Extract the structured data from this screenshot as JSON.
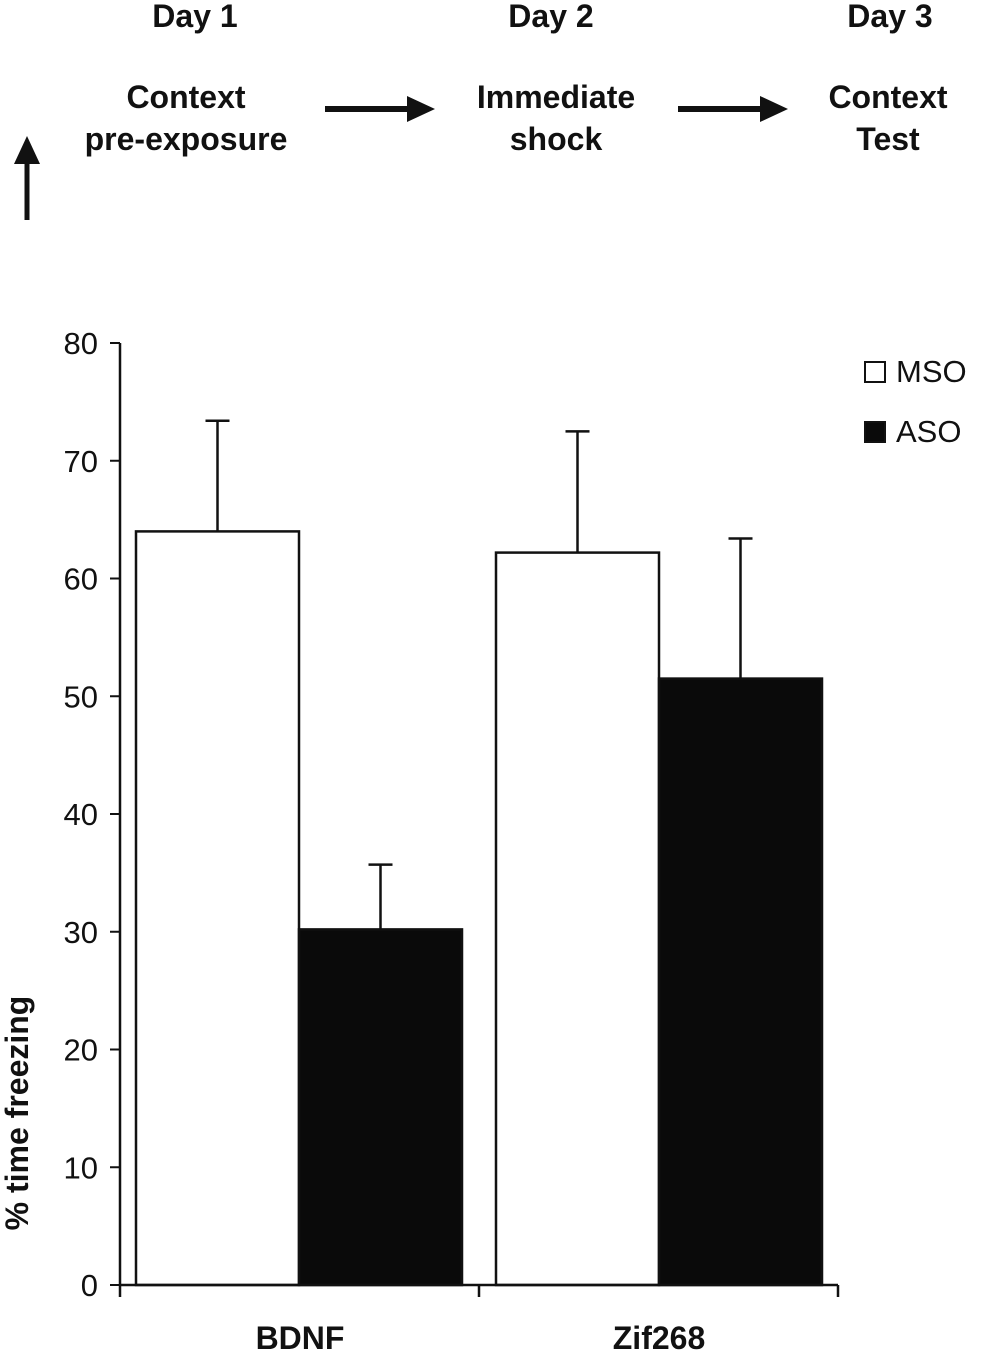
{
  "timeline": {
    "days": [
      "Day 1",
      "Day 2",
      "Day 3"
    ],
    "steps": [
      "Context\npre-exposure",
      "Immediate\nshock",
      "Context\nTest"
    ]
  },
  "legend": [
    {
      "label": "MSO",
      "color": "#ffffff"
    },
    {
      "label": "ASO",
      "color": "#0a0a0a"
    }
  ],
  "chart_data": {
    "type": "bar",
    "categories": [
      "BDNF",
      "Zif268"
    ],
    "series": [
      {
        "name": "MSO",
        "values": [
          64,
          62.2
        ],
        "errors": [
          9.4,
          10.3
        ],
        "color": "#ffffff"
      },
      {
        "name": "ASO",
        "values": [
          30.2,
          51.5
        ],
        "errors": [
          5.5,
          11.9
        ],
        "color": "#0a0a0a"
      }
    ],
    "ylabel": "% time freezing",
    "xlabel": "",
    "ylim": [
      0,
      80
    ],
    "yticks": [
      0,
      10,
      20,
      30,
      40,
      50,
      60,
      70,
      80
    ],
    "grid": false,
    "legend_position": "top-right"
  }
}
